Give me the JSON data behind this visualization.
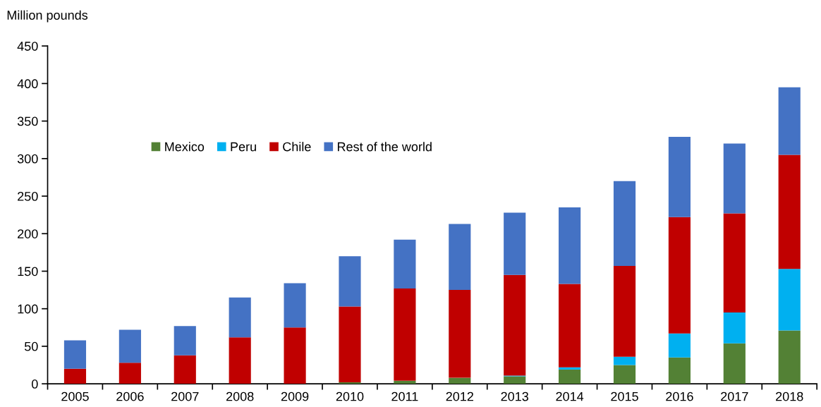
{
  "chart_data": {
    "type": "bar",
    "stacked": true,
    "ylabel": "Million pounds",
    "categories": [
      "2005",
      "2006",
      "2007",
      "2008",
      "2009",
      "2010",
      "2011",
      "2012",
      "2013",
      "2014",
      "2015",
      "2016",
      "2017",
      "2018"
    ],
    "series": [
      {
        "name": "Mexico",
        "color": "#538135",
        "values": [
          0,
          0,
          0,
          0,
          0,
          2,
          4,
          8,
          10,
          19,
          25,
          35,
          54,
          71
        ]
      },
      {
        "name": "Peru",
        "color": "#00b0f0",
        "values": [
          0,
          0,
          0,
          0,
          0,
          0,
          0,
          0,
          1,
          3,
          11,
          32,
          41,
          82
        ]
      },
      {
        "name": "Chile",
        "color": "#c00000",
        "values": [
          20,
          28,
          38,
          62,
          75,
          101,
          123,
          117,
          134,
          111,
          121,
          155,
          132,
          152
        ]
      },
      {
        "name": "Rest of the world",
        "color": "#4472c4",
        "values": [
          38,
          44,
          39,
          53,
          59,
          67,
          65,
          88,
          83,
          102,
          113,
          107,
          93,
          90
        ]
      }
    ],
    "ylim": [
      0,
      450
    ],
    "yticks": [
      0,
      50,
      100,
      150,
      200,
      250,
      300,
      350,
      400,
      450
    ],
    "grid": false,
    "legend": "top left"
  }
}
